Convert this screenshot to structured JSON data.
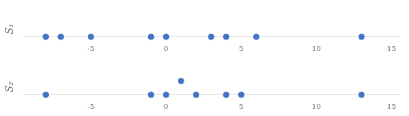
{
  "chart_data": [
    {
      "type": "scatter",
      "ylabel": "S₁",
      "xlim": [
        -9.5,
        15.5
      ],
      "xticks": [
        -5,
        0,
        5,
        10,
        15
      ],
      "ylim": [
        -0.8,
        1.5
      ],
      "tick_labels": "x",
      "grid": false,
      "series": [
        {
          "color": "#4472C4",
          "x": [
            -8,
            -7,
            -5,
            -1,
            0,
            3,
            4,
            6,
            13
          ],
          "values": [
            0,
            0,
            0,
            0,
            0,
            0,
            0,
            0,
            0
          ]
        }
      ]
    },
    {
      "type": "scatter",
      "ylabel": "S₂",
      "xlim": [
        -9.5,
        15.5
      ],
      "xticks": [
        -5,
        0,
        5,
        10,
        15
      ],
      "ylim": [
        -0.8,
        1.5
      ],
      "tick_labels": "x",
      "grid": false,
      "series": [
        {
          "color": "#4472C4",
          "x": [
            -8,
            -1,
            0,
            2,
            4,
            5,
            13
          ],
          "values": [
            0,
            0,
            0,
            0,
            0,
            0,
            0
          ]
        },
        {
          "color": "#4472C4",
          "x": [
            1
          ],
          "values": [
            0.62
          ]
        }
      ]
    }
  ]
}
